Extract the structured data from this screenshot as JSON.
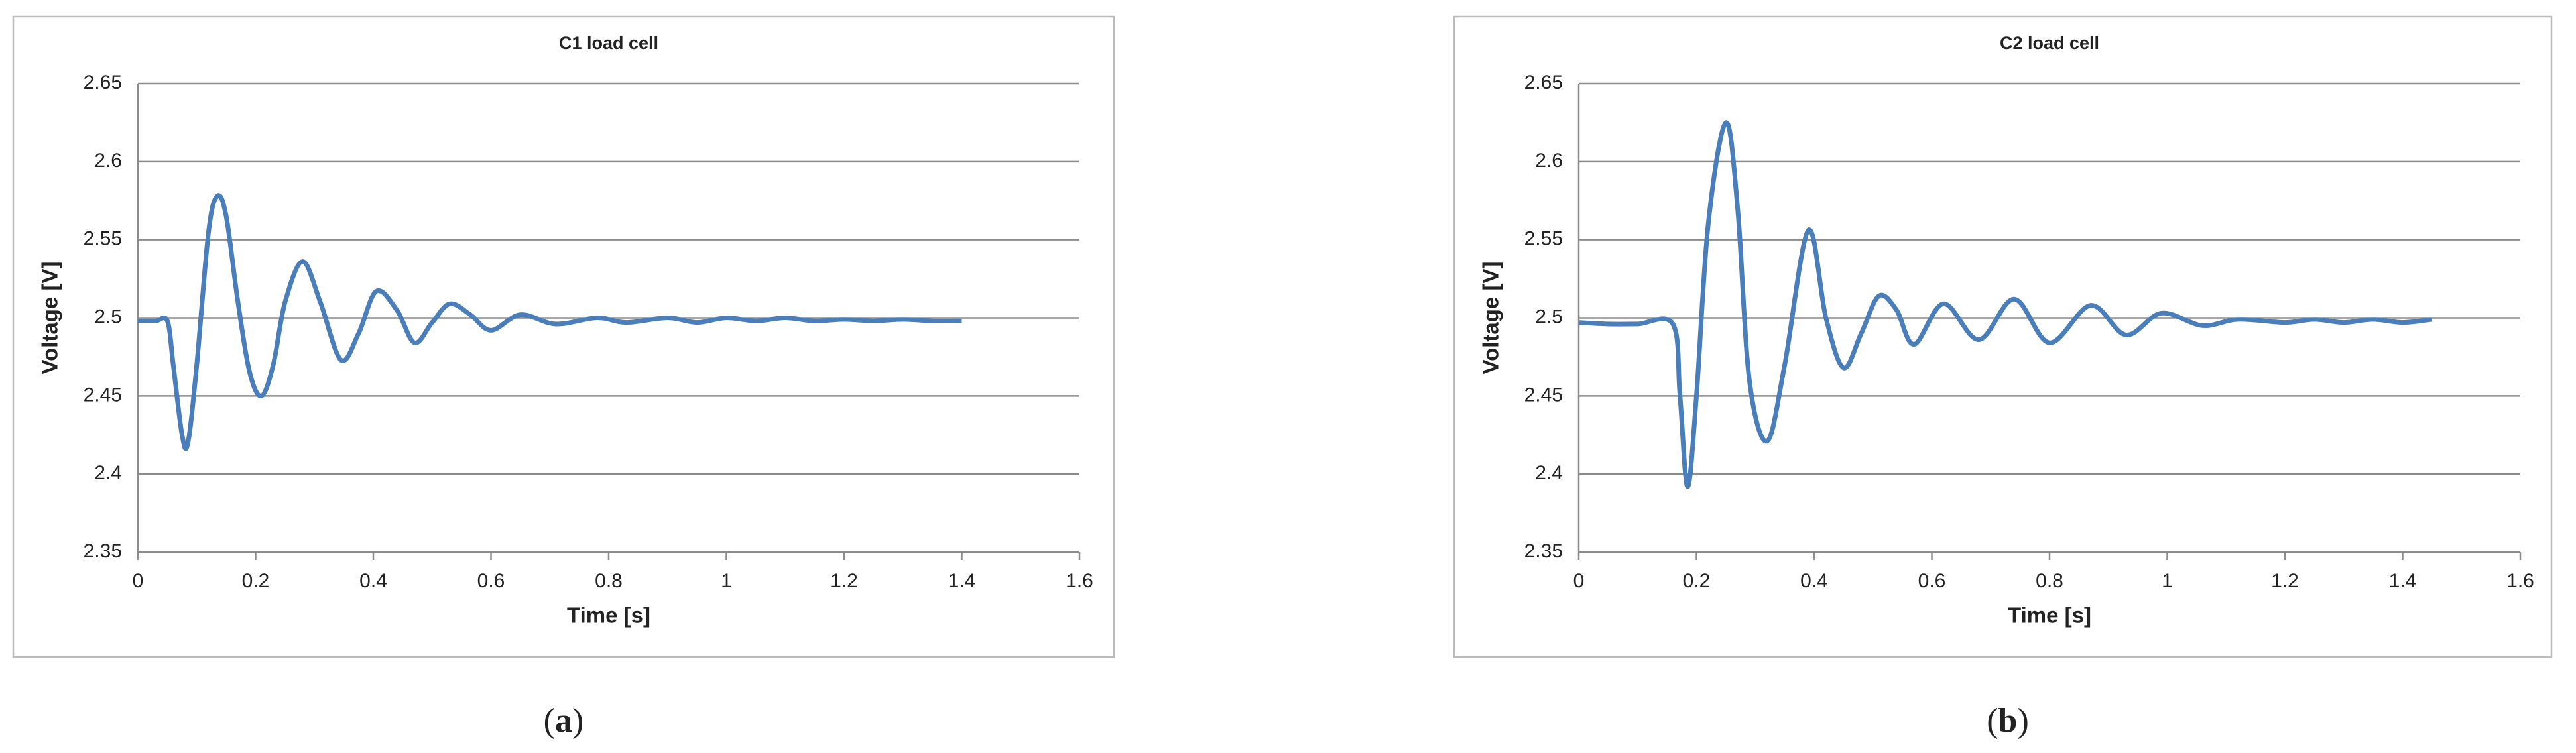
{
  "chart_data": [
    {
      "type": "line",
      "title": "C1 load cell",
      "x_label": "Time [s]",
      "y_label": "Voltage [V]",
      "caption": [
        "(",
        "a",
        ")"
      ],
      "x": [
        0,
        0.03,
        0.05,
        0.06,
        0.075,
        0.085,
        0.1,
        0.12,
        0.135,
        0.15,
        0.17,
        0.19,
        0.21,
        0.23,
        0.25,
        0.28,
        0.31,
        0.345,
        0.375,
        0.405,
        0.44,
        0.47,
        0.5,
        0.53,
        0.565,
        0.6,
        0.65,
        0.71,
        0.78,
        0.83,
        0.9,
        0.95,
        1.0,
        1.05,
        1.1,
        1.15,
        1.2,
        1.25,
        1.3,
        1.35,
        1.4
      ],
      "series": [
        {
          "name": "C1",
          "color": "#4a7ebb",
          "values": [
            2.498,
            2.498,
            2.498,
            2.47,
            2.425,
            2.42,
            2.47,
            2.555,
            2.578,
            2.565,
            2.51,
            2.465,
            2.45,
            2.47,
            2.51,
            2.536,
            2.51,
            2.473,
            2.49,
            2.517,
            2.505,
            2.484,
            2.497,
            2.509,
            2.502,
            2.492,
            2.502,
            2.496,
            2.5,
            2.497,
            2.5,
            2.497,
            2.5,
            2.498,
            2.5,
            2.498,
            2.499,
            2.498,
            2.499,
            2.498,
            2.498
          ]
        }
      ],
      "xlim": [
        0,
        1.6
      ],
      "xticks": [
        0,
        0.2,
        0.4,
        0.6,
        0.8,
        1,
        1.2,
        1.4,
        1.6
      ],
      "ylim": [
        2.35,
        2.65
      ],
      "yticks": [
        2.35,
        2.4,
        2.45,
        2.5,
        2.55,
        2.6,
        2.65
      ],
      "grid": true
    },
    {
      "type": "line",
      "title": "C2 load cell",
      "x_label": "Time [s]",
      "y_label": "Voltage [V]",
      "caption": [
        "(",
        "b",
        ")"
      ],
      "x": [
        0,
        0.05,
        0.1,
        0.16,
        0.172,
        0.185,
        0.2,
        0.22,
        0.25,
        0.27,
        0.29,
        0.32,
        0.35,
        0.39,
        0.42,
        0.45,
        0.48,
        0.51,
        0.54,
        0.57,
        0.62,
        0.68,
        0.74,
        0.8,
        0.87,
        0.93,
        0.99,
        1.06,
        1.12,
        1.2,
        1.25,
        1.3,
        1.35,
        1.4,
        1.45
      ],
      "series": [
        {
          "name": "C2",
          "color": "#4a7ebb",
          "values": [
            2.497,
            2.496,
            2.496,
            2.496,
            2.45,
            2.392,
            2.45,
            2.56,
            2.625,
            2.57,
            2.46,
            2.421,
            2.47,
            2.556,
            2.5,
            2.468,
            2.49,
            2.514,
            2.505,
            2.483,
            2.509,
            2.486,
            2.512,
            2.484,
            2.508,
            2.489,
            2.503,
            2.495,
            2.499,
            2.497,
            2.499,
            2.497,
            2.499,
            2.497,
            2.499
          ]
        }
      ],
      "xlim": [
        0,
        1.6
      ],
      "xticks": [
        0,
        0.2,
        0.4,
        0.6,
        0.8,
        1,
        1.2,
        1.4,
        1.6
      ],
      "ylim": [
        2.35,
        2.65
      ],
      "yticks": [
        2.35,
        2.4,
        2.45,
        2.5,
        2.55,
        2.6,
        2.65
      ],
      "grid": true
    }
  ]
}
